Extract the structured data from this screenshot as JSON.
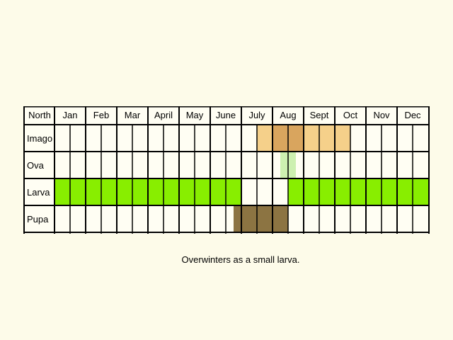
{
  "header": {
    "region_label": "North",
    "region_color": "#e00000"
  },
  "months": [
    "Jan",
    "Feb",
    "Mar",
    "Apr",
    "May",
    "June",
    "July",
    "Aug",
    "Sept",
    "Oct",
    "Nov",
    "Dec"
  ],
  "month_labels": [
    "Jan",
    "Feb",
    "Mar",
    "April",
    "May",
    "June",
    "July",
    "Aug",
    "Sept",
    "Oct",
    "Nov",
    "Dec"
  ],
  "stages": [
    {
      "label": "Imago",
      "periods": [
        {
          "from": 6.5,
          "to": 7.0,
          "color": "#f5d08a"
        },
        {
          "from": 7.0,
          "to": 8.0,
          "color": "#d9a55e"
        },
        {
          "from": 8.0,
          "to": 9.5,
          "color": "#f5d08a"
        }
      ]
    },
    {
      "label": "Ova",
      "periods": [
        {
          "from": 7.25,
          "to": 7.75,
          "color": "#cdf0b0"
        }
      ]
    },
    {
      "label": "Larva",
      "periods": [
        {
          "from": 0.0,
          "to": 6.0,
          "color": "#88ee00"
        },
        {
          "from": 7.5,
          "to": 12.0,
          "color": "#88ee00"
        }
      ]
    },
    {
      "label": "Pupa",
      "periods": [
        {
          "from": 5.75,
          "to": 7.5,
          "color": "#8c7442"
        }
      ]
    }
  ],
  "note": "Overwinters as a small larva."
}
